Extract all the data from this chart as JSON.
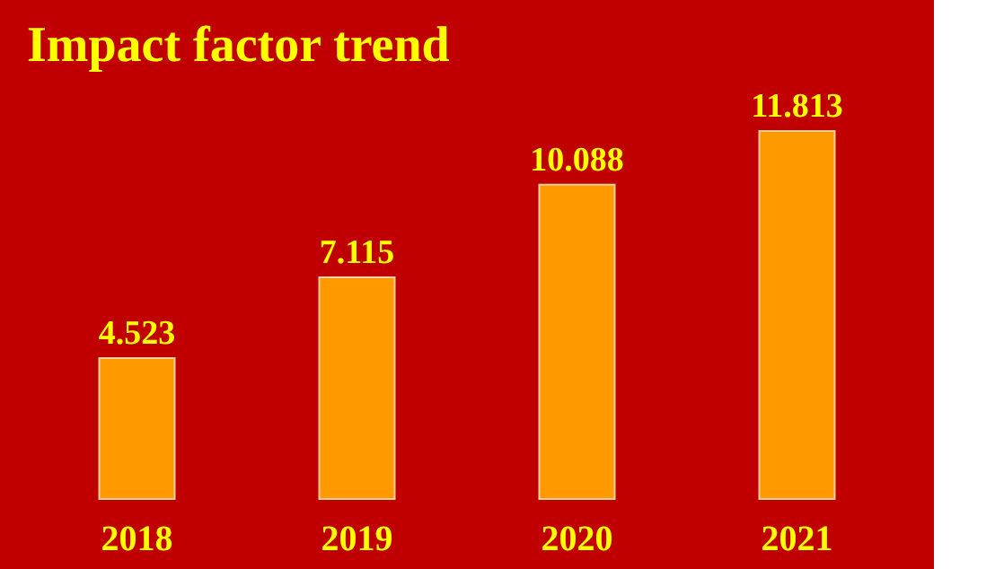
{
  "chart_data": {
    "type": "bar",
    "title": "Impact factor trend",
    "categories": [
      "2018",
      "2019",
      "2020",
      "2021"
    ],
    "values": [
      4.523,
      7.115,
      10.088,
      11.813
    ],
    "color": "#ff9900",
    "data_labels": true,
    "grid": false
  }
}
